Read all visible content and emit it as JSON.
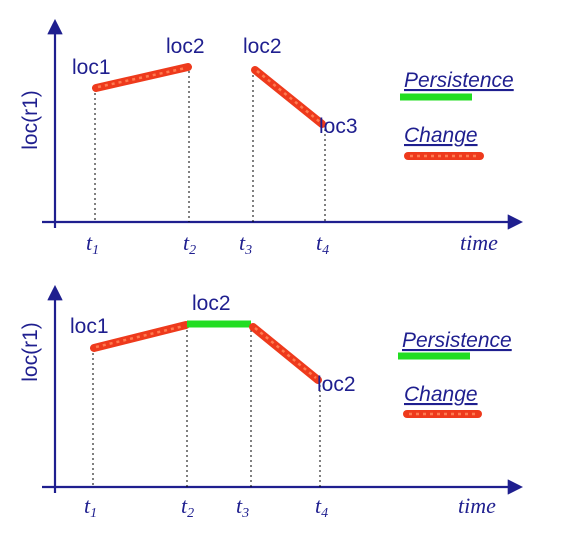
{
  "y_axis_label": "loc(r1)",
  "x_axis_label": "time",
  "legend": {
    "persistence": "Persistence",
    "change": "Change"
  },
  "colors": {
    "axis": "#1f1f8f",
    "change": "#ee3a1c",
    "persistence": "#22dd22"
  },
  "top_panel": {
    "ticks": [
      {
        "main": "t",
        "sub": "1"
      },
      {
        "main": "t",
        "sub": "2"
      },
      {
        "main": "t",
        "sub": "3"
      },
      {
        "main": "t",
        "sub": "4"
      }
    ],
    "labels": [
      "loc1",
      "loc2",
      "loc2",
      "loc3"
    ],
    "segments": [
      {
        "type": "change",
        "from": "t1",
        "to": "t2"
      },
      {
        "type": "change",
        "from": "t3",
        "to": "t4"
      }
    ]
  },
  "bottom_panel": {
    "ticks": [
      {
        "main": "t",
        "sub": "1"
      },
      {
        "main": "t",
        "sub": "2"
      },
      {
        "main": "t",
        "sub": "3"
      },
      {
        "main": "t",
        "sub": "4"
      }
    ],
    "labels": [
      "loc1",
      "loc2",
      "loc2"
    ],
    "segments": [
      {
        "type": "change",
        "from": "t1",
        "to": "t2"
      },
      {
        "type": "persistence",
        "from": "t2",
        "to": "t3"
      },
      {
        "type": "change",
        "from": "t3",
        "to": "t4"
      }
    ]
  }
}
